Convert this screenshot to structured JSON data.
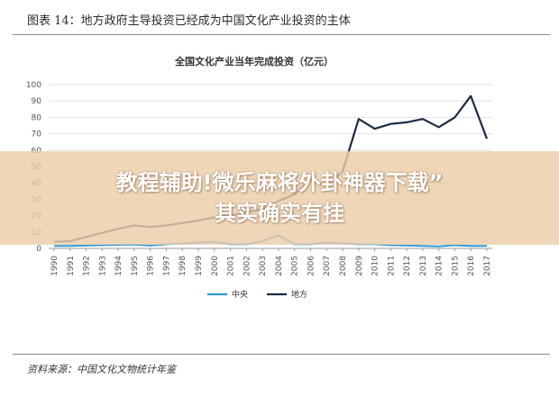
{
  "figure": {
    "title": "图表 14：地方政府主导投资已经成为中国文化产业投资的主体",
    "source": "资料来源：中国文化文物统计年鉴"
  },
  "chart_data": {
    "type": "line",
    "title": "全国文化产业当年完成投资（亿元）",
    "x": [
      "1990",
      "1991",
      "1992",
      "1993",
      "1994",
      "1995",
      "1996",
      "1997",
      "1998",
      "1999",
      "2000",
      "2001",
      "2002",
      "2003",
      "2004",
      "2005",
      "2006",
      "2007",
      "2008",
      "2009",
      "2010",
      "2011",
      "2012",
      "2013",
      "2014",
      "2015",
      "2016",
      "2017"
    ],
    "ylim": [
      0,
      100
    ],
    "yticks": [
      0,
      10,
      20,
      30,
      40,
      50,
      60,
      70,
      80,
      90,
      100
    ],
    "grid": true,
    "legend_position": "bottom",
    "series": [
      {
        "name": "中央",
        "color": "#2e9bd6",
        "values": [
          1.5,
          1.5,
          1.8,
          2.0,
          2.2,
          2.3,
          1.8,
          2.5,
          3.0,
          3.5,
          4.0,
          2.5,
          2.5,
          4.5,
          8.0,
          2.5,
          2.5,
          3.5,
          3.0,
          2.5,
          2.5,
          2.0,
          1.8,
          1.5,
          1.2,
          2.0,
          1.5,
          1.5
        ]
      },
      {
        "name": "地方",
        "color": "#1c2b45",
        "values": [
          4.0,
          4.5,
          7.0,
          9.5,
          12.0,
          14.0,
          13.0,
          14.0,
          15.5,
          17.0,
          19.0,
          20.0,
          22.0,
          24.0,
          29.0,
          33.0,
          42.0,
          38.0,
          47.0,
          79.0,
          73.0,
          76.0,
          77.0,
          79.0,
          74.0,
          80.0,
          93.0,
          67.0
        ]
      }
    ]
  },
  "watermark": {
    "line1": "教程辅助!微乐麻将外卦神器下载”",
    "line2": "其实确实有挂"
  }
}
